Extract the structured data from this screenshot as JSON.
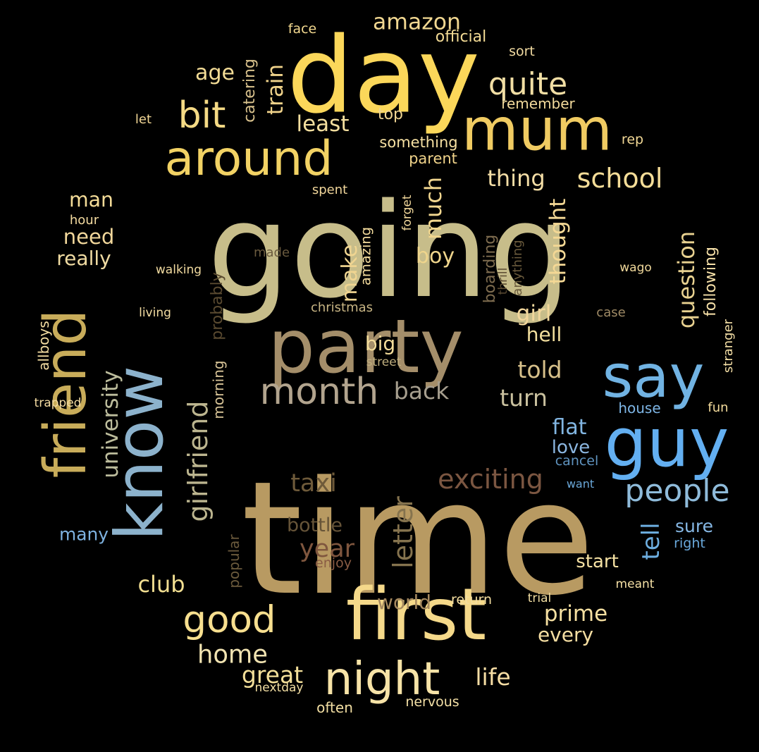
{
  "words": [
    {
      "text": "going",
      "color": "#c7bd8a"
    },
    {
      "text": "time",
      "color": "#b89a62"
    },
    {
      "text": "day",
      "color": "#fbd75a"
    },
    {
      "text": "party",
      "color": "#a48e6a"
    },
    {
      "text": "first",
      "color": "#f5d98a"
    },
    {
      "text": "mum",
      "color": "#f0cb62"
    },
    {
      "text": "around",
      "color": "#f2d264"
    },
    {
      "text": "say",
      "color": "#71b3e3"
    },
    {
      "text": "know",
      "color": "#8cb2cc"
    },
    {
      "text": "guy",
      "color": "#63aff1"
    },
    {
      "text": "friend",
      "color": "#c8ac5a"
    },
    {
      "text": "night",
      "color": "#f7e3a7"
    },
    {
      "text": "month",
      "color": "#b2a48e"
    },
    {
      "text": "bit",
      "color": "#f5da85"
    },
    {
      "text": "good",
      "color": "#f7df8f"
    },
    {
      "text": "girlfriend",
      "color": "#bcb58f"
    },
    {
      "text": "quite",
      "color": "#f1dea4"
    },
    {
      "text": "exciting",
      "color": "#7b5641"
    },
    {
      "text": "people",
      "color": "#8fbbda"
    },
    {
      "text": "school",
      "color": "#f5dd98"
    },
    {
      "text": "amazon",
      "color": "#f1d791"
    },
    {
      "text": "home",
      "color": "#f1e3b1"
    },
    {
      "text": "university",
      "color": "#bcbc9c"
    },
    {
      "text": "letter",
      "color": "#85734e"
    },
    {
      "text": "taxi",
      "color": "#6e5a3a"
    },
    {
      "text": "question",
      "color": "#e8d190"
    },
    {
      "text": "thing",
      "color": "#f4dea6"
    },
    {
      "text": "back",
      "color": "#a69e8e"
    },
    {
      "text": "told",
      "color": "#d7c08a"
    },
    {
      "text": "turn",
      "color": "#c9c09e"
    },
    {
      "text": "year",
      "color": "#7f563e"
    },
    {
      "text": "bottle",
      "color": "#665438"
    },
    {
      "text": "club",
      "color": "#f1de91"
    },
    {
      "text": "great",
      "color": "#f3df99"
    },
    {
      "text": "life",
      "color": "#f7dea5"
    },
    {
      "text": "prime",
      "color": "#f6e0a1"
    },
    {
      "text": "tell",
      "color": "#6daee0"
    },
    {
      "text": "flat",
      "color": "#82b6e2"
    },
    {
      "text": "much",
      "color": "#f1d68f"
    },
    {
      "text": "boy",
      "color": "#efd58c"
    },
    {
      "text": "make",
      "color": "#f0d591"
    },
    {
      "text": "girl",
      "color": "#f2d79c"
    },
    {
      "text": "thought",
      "color": "#f4d895"
    },
    {
      "text": "train",
      "color": "#efd28a"
    },
    {
      "text": "least",
      "color": "#f4df9f"
    },
    {
      "text": "age",
      "color": "#f3dc96"
    },
    {
      "text": "man",
      "color": "#f4dc98"
    },
    {
      "text": "need",
      "color": "#f1d79b"
    },
    {
      "text": "really",
      "color": "#f0dba2"
    },
    {
      "text": "big",
      "color": "#f3dc9a"
    },
    {
      "text": "hell",
      "color": "#f2df9e"
    },
    {
      "text": "start",
      "color": "#f5e1a3"
    },
    {
      "text": "world",
      "color": "#a6895f"
    },
    {
      "text": "many",
      "color": "#7eb2e0"
    },
    {
      "text": "love",
      "color": "#8bb6e0"
    },
    {
      "text": "sure",
      "color": "#86b8e5"
    },
    {
      "text": "every",
      "color": "#f5dea2"
    },
    {
      "text": "something",
      "color": "#f6e0a2"
    },
    {
      "text": "face",
      "color": "#f2d88f"
    },
    {
      "text": "official",
      "color": "#f3db95"
    },
    {
      "text": "sort",
      "color": "#f2dba2"
    },
    {
      "text": "remember",
      "color": "#f2da9c"
    },
    {
      "text": "top",
      "color": "#f0d592"
    },
    {
      "text": "rep",
      "color": "#f3d996"
    },
    {
      "text": "parent",
      "color": "#f0d38a"
    },
    {
      "text": "spent",
      "color": "#f0d59a"
    },
    {
      "text": "catering",
      "color": "#d8c18c"
    },
    {
      "text": "let",
      "color": "#f1d695"
    },
    {
      "text": "hour",
      "color": "#f4dba0"
    },
    {
      "text": "following",
      "color": "#f6e0a8"
    },
    {
      "text": "stranger",
      "color": "#f4dfa6"
    },
    {
      "text": "house",
      "color": "#7eb6e6"
    },
    {
      "text": "fun",
      "color": "#f4dc9c"
    },
    {
      "text": "cancel",
      "color": "#5f93bf"
    },
    {
      "text": "want",
      "color": "#6aa7d8"
    },
    {
      "text": "right",
      "color": "#6aa9dc"
    },
    {
      "text": "meant",
      "color": "#f6e1a6"
    },
    {
      "text": "trial",
      "color": "#f1dda1"
    },
    {
      "text": "return",
      "color": "#f3dd9f"
    },
    {
      "text": "nervous",
      "color": "#f4e0a6"
    },
    {
      "text": "often",
      "color": "#f3dfa3"
    },
    {
      "text": "nextday",
      "color": "#f3dfa3"
    },
    {
      "text": "enjoy",
      "color": "#8a5c44"
    },
    {
      "text": "popular",
      "color": "#6b5a3c"
    },
    {
      "text": "street",
      "color": "#bfae7e"
    },
    {
      "text": "christmas",
      "color": "#c8b584"
    },
    {
      "text": "case",
      "color": "#a08b66"
    },
    {
      "text": "wago",
      "color": "#f0d89b"
    },
    {
      "text": "living",
      "color": "#f4dda2"
    },
    {
      "text": "walking",
      "color": "#f2dba0"
    },
    {
      "text": "made",
      "color": "#6a5a3e"
    },
    {
      "text": "probably",
      "color": "#5a4a30"
    },
    {
      "text": "morning",
      "color": "#d9c598"
    },
    {
      "text": "trapped",
      "color": "#f4dca2"
    },
    {
      "text": "allboys",
      "color": "#f3dca1"
    },
    {
      "text": "amazing",
      "color": "#f4dc9d"
    },
    {
      "text": "forget",
      "color": "#f3d99c"
    },
    {
      "text": "boarding",
      "color": "#7d6b4e"
    },
    {
      "text": "thrill",
      "color": "#5c4c32"
    },
    {
      "text": "anything",
      "color": "#6a5a3c"
    }
  ]
}
